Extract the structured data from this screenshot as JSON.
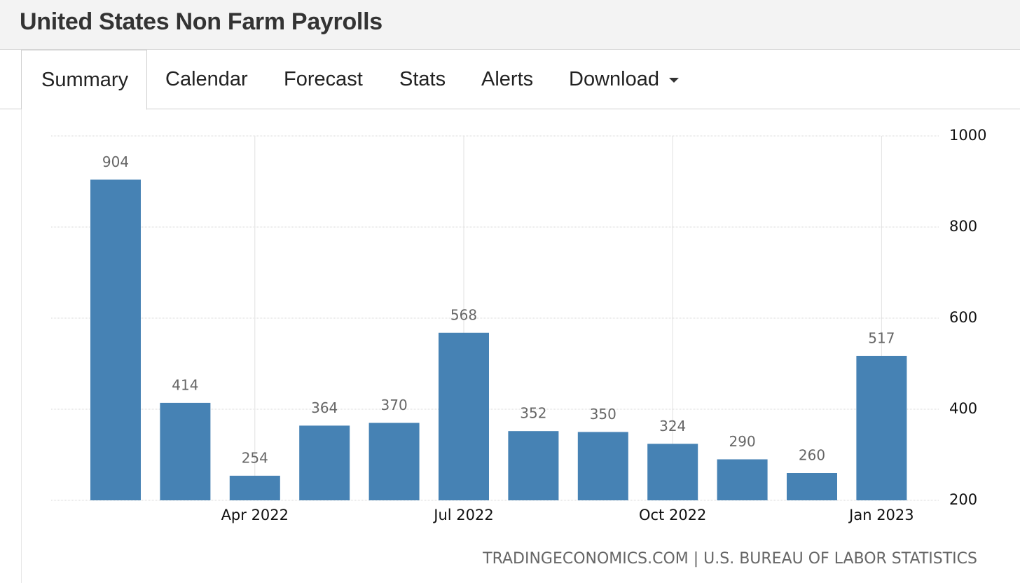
{
  "header": {
    "title": "United States Non Farm Payrolls"
  },
  "tabs": [
    "Summary",
    "Calendar",
    "Forecast",
    "Stats",
    "Alerts",
    "Download"
  ],
  "chart_data": {
    "type": "bar",
    "categories": [
      null,
      null,
      "Apr 2022",
      null,
      null,
      "Jul 2022",
      null,
      null,
      "Oct 2022",
      null,
      null,
      "Jan 2023"
    ],
    "values": [
      904,
      414,
      254,
      364,
      370,
      568,
      352,
      350,
      324,
      290,
      260,
      517
    ],
    "color": "#4682b4",
    "ylim": [
      200,
      1000
    ],
    "yticks": [
      200,
      400,
      600,
      800,
      1000
    ],
    "grid": true,
    "source": "TRADINGECONOMICS.COM | U.S. BUREAU OF LABOR STATISTICS"
  }
}
